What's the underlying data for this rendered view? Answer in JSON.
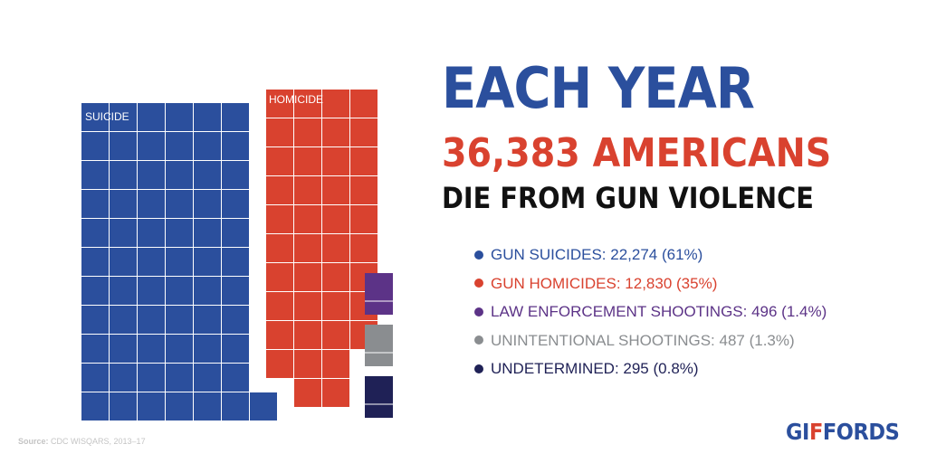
{
  "headline": {
    "line1": "EACH YEAR",
    "line2": "36,383 AMERICANS",
    "line3": "DIE FROM GUN VIOLENCE"
  },
  "colors": {
    "suicide": "#2b4f9d",
    "homicide": "#d9422f",
    "law_enforcement": "#5c3387",
    "unintentional": "#8a8d90",
    "undetermined": "#1f2156",
    "headline_blue": "#2b4f9d",
    "headline_red": "#d9422f",
    "headline_black": "#111111"
  },
  "source": {
    "label": "Source:",
    "text": "CDC WISQARS, 2013–17"
  },
  "logo": {
    "prefix": "GI",
    "accent": "F",
    "suffix": "FORDS"
  },
  "chart_data": {
    "type": "waffle",
    "total": 36383,
    "categories": [
      {
        "key": "suicide",
        "name": "GUN SUICIDES",
        "waffle_label": "SUICIDE",
        "value": 22274,
        "percent": "61%",
        "legend": "GUN SUICIDES: 22,274 (61%)",
        "color": "#2b4f9d"
      },
      {
        "key": "homicide",
        "name": "GUN HOMICIDES",
        "waffle_label": "HOMICIDE",
        "value": 12830,
        "percent": "35%",
        "legend": "GUN HOMICIDES: 12,830 (35%)",
        "color": "#d9422f"
      },
      {
        "key": "law_enforcement",
        "name": "LAW ENFORCEMENT SHOOTINGS",
        "waffle_label": "",
        "value": 496,
        "percent": "1.4%",
        "legend": "LAW ENFORCEMENT SHOOTINGS: 496 (1.4%)",
        "color": "#5c3387"
      },
      {
        "key": "unintentional",
        "name": "UNINTENTIONAL SHOOTINGS",
        "waffle_label": "",
        "value": 487,
        "percent": "1.3%",
        "legend": "UNINTENTIONAL SHOOTINGS: 487 (1.3%)",
        "color": "#8a8d90"
      },
      {
        "key": "undetermined",
        "name": "UNDETERMINED",
        "waffle_label": "",
        "value": 295,
        "percent": "0.8%",
        "legend": "UNDETERMINED: 295 (0.8%)",
        "color": "#1f2156"
      }
    ]
  }
}
